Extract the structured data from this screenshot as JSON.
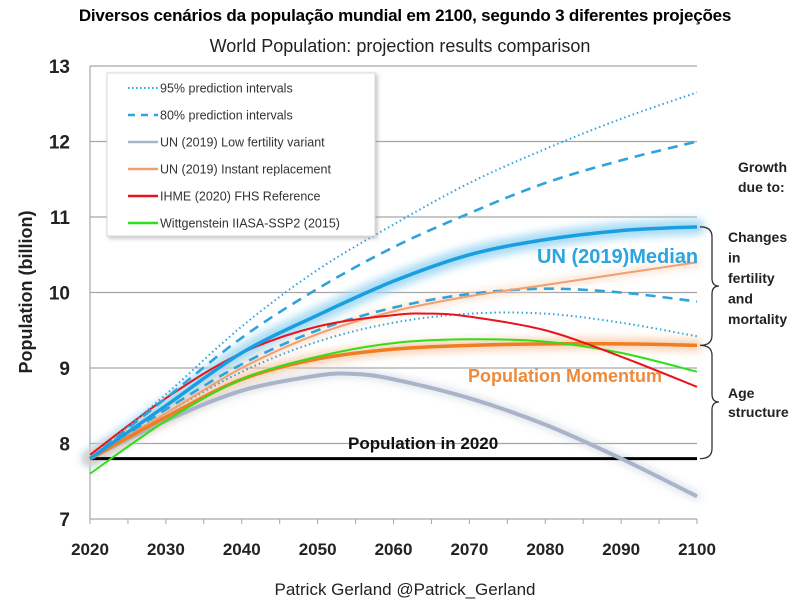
{
  "header": {
    "top_title": "Diversos cenários da população mundial em 2100, segundo 3 diferentes projeções",
    "credit": "Patrick Gerland @Patrick_Gerland"
  },
  "chart_data": {
    "type": "line",
    "title": "World Population: projection results comparison",
    "xlabel": "",
    "ylabel": "Population (billion)",
    "xlim": [
      2020,
      2100
    ],
    "ylim": [
      7,
      13
    ],
    "x_ticks": [
      2020,
      2030,
      2040,
      2050,
      2060,
      2070,
      2080,
      2090,
      2100
    ],
    "y_ticks": [
      7,
      8,
      9,
      10,
      11,
      12,
      13
    ],
    "grid": "horizontal",
    "legend_position": "top-left",
    "series": [
      {
        "id": "pi95_upper",
        "name": "95% prediction intervals",
        "style": "dotted",
        "color": "#2fa3dc",
        "in_legend": true,
        "x": [
          2020,
          2030,
          2040,
          2050,
          2060,
          2070,
          2080,
          2090,
          2100
        ],
        "values": [
          7.8,
          8.65,
          9.55,
          10.3,
          10.9,
          11.45,
          11.9,
          12.3,
          12.65
        ]
      },
      {
        "id": "pi95_lower",
        "name": "95% prediction intervals (lower)",
        "style": "dotted",
        "color": "#2fa3dc",
        "in_legend": false,
        "x": [
          2020,
          2030,
          2040,
          2050,
          2060,
          2070,
          2080,
          2090,
          2100
        ],
        "values": [
          7.8,
          8.4,
          8.95,
          9.35,
          9.6,
          9.72,
          9.72,
          9.6,
          9.42
        ]
      },
      {
        "id": "pi80_upper",
        "name": "80% prediction intervals",
        "style": "dashed",
        "color": "#2fa3dc",
        "in_legend": true,
        "x": [
          2020,
          2030,
          2040,
          2050,
          2060,
          2070,
          2080,
          2090,
          2100
        ],
        "values": [
          7.8,
          8.6,
          9.4,
          10.05,
          10.6,
          11.05,
          11.45,
          11.75,
          12.0
        ]
      },
      {
        "id": "pi80_lower",
        "name": "80% prediction intervals (lower)",
        "style": "dashed",
        "color": "#2fa3dc",
        "in_legend": false,
        "x": [
          2020,
          2030,
          2040,
          2050,
          2060,
          2070,
          2080,
          2090,
          2100
        ],
        "values": [
          7.8,
          8.45,
          9.05,
          9.5,
          9.8,
          9.98,
          10.05,
          10.0,
          9.88
        ]
      },
      {
        "id": "un_low",
        "name": "UN (2019) Low fertility variant",
        "style": "solid-thick",
        "color": "#a9b4c8",
        "in_legend": true,
        "x": [
          2020,
          2030,
          2040,
          2050,
          2055,
          2060,
          2070,
          2080,
          2090,
          2100
        ],
        "values": [
          7.8,
          8.3,
          8.7,
          8.9,
          8.92,
          8.85,
          8.6,
          8.25,
          7.8,
          7.3
        ]
      },
      {
        "id": "un_instant",
        "name": "UN (2019) Instant replacement",
        "style": "solid",
        "color": "#f0a070",
        "in_legend": true,
        "x": [
          2020,
          2030,
          2040,
          2050,
          2060,
          2070,
          2080,
          2090,
          2100
        ],
        "values": [
          7.8,
          8.4,
          9.0,
          9.45,
          9.75,
          9.95,
          10.1,
          10.25,
          10.4
        ]
      },
      {
        "id": "momentum",
        "name": "Population Momentum",
        "style": "solid-thick",
        "color": "#ef7d22",
        "in_legend": false,
        "x": [
          2020,
          2030,
          2040,
          2050,
          2060,
          2070,
          2080,
          2090,
          2100
        ],
        "values": [
          7.8,
          8.35,
          8.85,
          9.12,
          9.25,
          9.3,
          9.32,
          9.32,
          9.3
        ]
      },
      {
        "id": "ihme",
        "name": "IHME (2020) FHS Reference",
        "style": "solid",
        "color": "#e8141c",
        "in_legend": true,
        "x": [
          2020,
          2030,
          2040,
          2050,
          2060,
          2065,
          2070,
          2080,
          2090,
          2100
        ],
        "values": [
          7.85,
          8.6,
          9.2,
          9.55,
          9.7,
          9.72,
          9.68,
          9.5,
          9.15,
          8.75
        ]
      },
      {
        "id": "wittgenstein",
        "name": "Wittgenstein IIASA-SSP2 (2015)",
        "style": "solid",
        "color": "#2ee01a",
        "in_legend": true,
        "x": [
          2020,
          2030,
          2040,
          2050,
          2060,
          2070,
          2080,
          2090,
          2100
        ],
        "values": [
          7.6,
          8.3,
          8.85,
          9.15,
          9.33,
          9.38,
          9.35,
          9.2,
          8.95
        ]
      },
      {
        "id": "un_median",
        "name": "UN (2019)Median",
        "style": "solid-thick",
        "color": "#1b9ee0",
        "in_legend": false,
        "x": [
          2020,
          2030,
          2040,
          2050,
          2060,
          2070,
          2080,
          2090,
          2100
        ],
        "values": [
          7.8,
          8.5,
          9.2,
          9.7,
          10.15,
          10.5,
          10.7,
          10.82,
          10.87
        ]
      },
      {
        "id": "pop2020",
        "name": "Population in 2020",
        "style": "solid",
        "color": "#000000",
        "in_legend": false,
        "x": [
          2020,
          2100
        ],
        "values": [
          7.8,
          7.8
        ]
      }
    ],
    "legend": [
      "95% prediction intervals",
      "80% prediction intervals",
      "UN (2019) Low fertility variant",
      "UN (2019) Instant replacement",
      "IHME (2020) FHS Reference",
      "Wittgenstein IIASA-SSP2 (2015)"
    ],
    "annotations": {
      "median_label": "UN (2019)Median",
      "momentum_label": "Population Momentum",
      "pop2020_label": "Population in 2020",
      "growth_heading": [
        "Growth",
        "due to:"
      ],
      "fertility_mortality": [
        "Changes",
        "in",
        "fertility",
        "and",
        "mortality"
      ],
      "age_structure": [
        "Age",
        "structure"
      ]
    },
    "brackets": [
      {
        "label": "Changes in fertility and mortality",
        "from": 9.3,
        "to": 10.87
      },
      {
        "label": "Age structure",
        "from": 7.8,
        "to": 9.3
      }
    ]
  }
}
